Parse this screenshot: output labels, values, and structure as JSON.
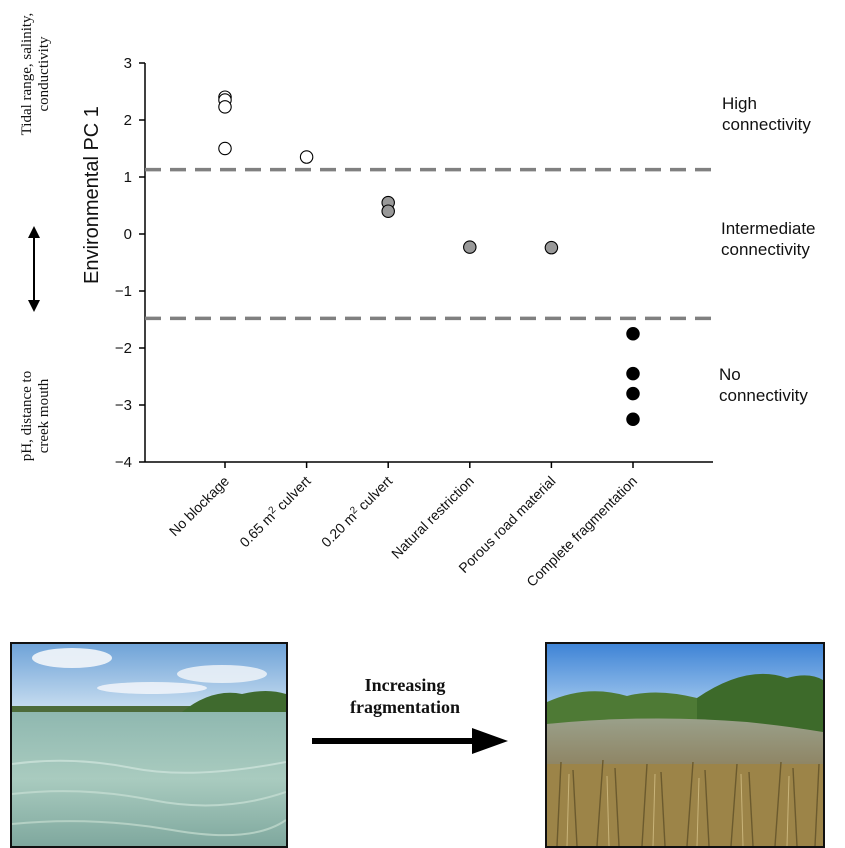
{
  "chart_data": {
    "type": "scatter",
    "ylabel": "Environmental PC 1",
    "ylim": [
      -4,
      3
    ],
    "yticks": [
      3,
      2,
      1,
      0,
      -1,
      -2,
      -3,
      -4
    ],
    "categories": [
      {
        "pre": "No blockage",
        "sup": "",
        "post": ""
      },
      {
        "pre": "0.65 m",
        "sup": "2",
        "post": " culvert"
      },
      {
        "pre": "0.20 m",
        "sup": "2",
        "post": " culvert"
      },
      {
        "pre": "Natural restriction",
        "sup": "",
        "post": ""
      },
      {
        "pre": "Porous road material",
        "sup": "",
        "post": ""
      },
      {
        "pre": "Complete fragmentation",
        "sup": "",
        "post": ""
      }
    ],
    "series": [
      {
        "fill": "#ffffff",
        "points": [
          [
            0,
            2.4
          ],
          [
            0,
            2.35
          ],
          [
            0,
            2.23
          ],
          [
            0,
            1.5
          ],
          [
            1,
            1.35
          ]
        ]
      },
      {
        "fill": "#999999",
        "points": [
          [
            2,
            0.55
          ],
          [
            2,
            0.4
          ],
          [
            3,
            -0.23
          ],
          [
            4,
            -0.24
          ]
        ]
      },
      {
        "fill": "#000000",
        "points": [
          [
            5,
            -1.75
          ],
          [
            5,
            -2.45
          ],
          [
            5,
            -2.8
          ],
          [
            5,
            -3.25
          ]
        ]
      }
    ],
    "thresholds": [
      1.13,
      -1.48
    ]
  },
  "labels": {
    "top_axis_note": "Tidal range, salinity,\nconductivity",
    "bottom_axis_note": "pH, distance to\ncreek mouth",
    "high": "High\nconnectivity",
    "intermediate": "Intermediate\nconnectivity",
    "none": "No\nconnectivity",
    "arrow_text": "Increasing\nfragmentation"
  }
}
